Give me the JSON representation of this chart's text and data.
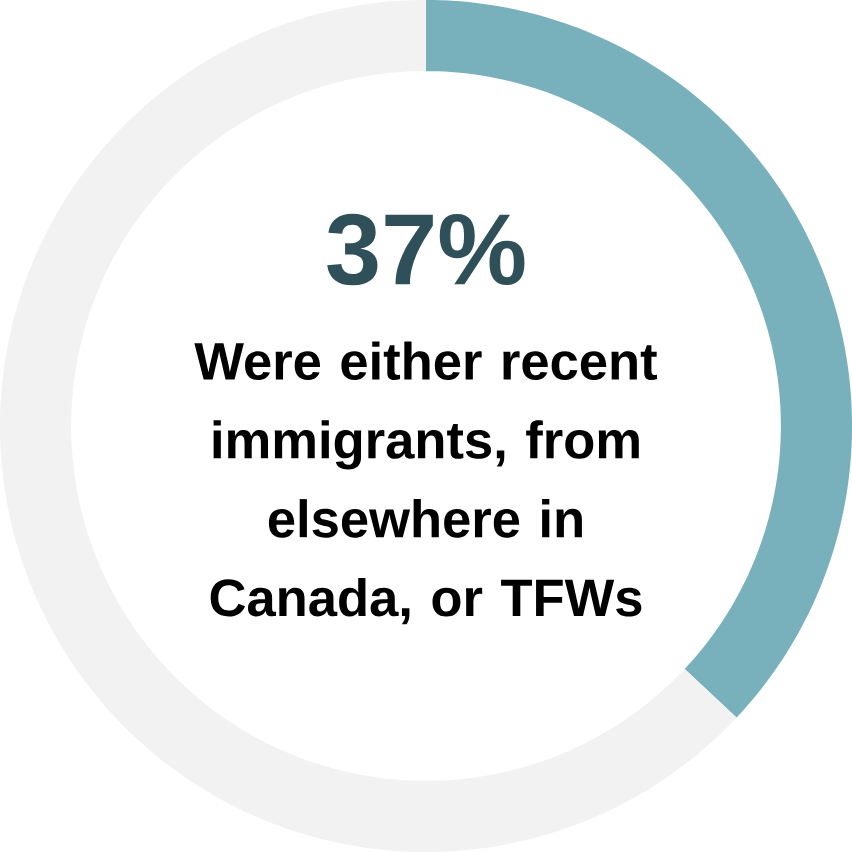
{
  "chart_data": {
    "type": "donut",
    "categories": [
      null,
      null
    ],
    "values": [
      37,
      63
    ],
    "colors": [
      "#78b0bb",
      "#f2f2f2"
    ],
    "value_labels": [
      "37%",
      null
    ],
    "annotations": [
      "Were either recent immigrants, from elsewhere in Canada, or TFWs"
    ]
  }
}
